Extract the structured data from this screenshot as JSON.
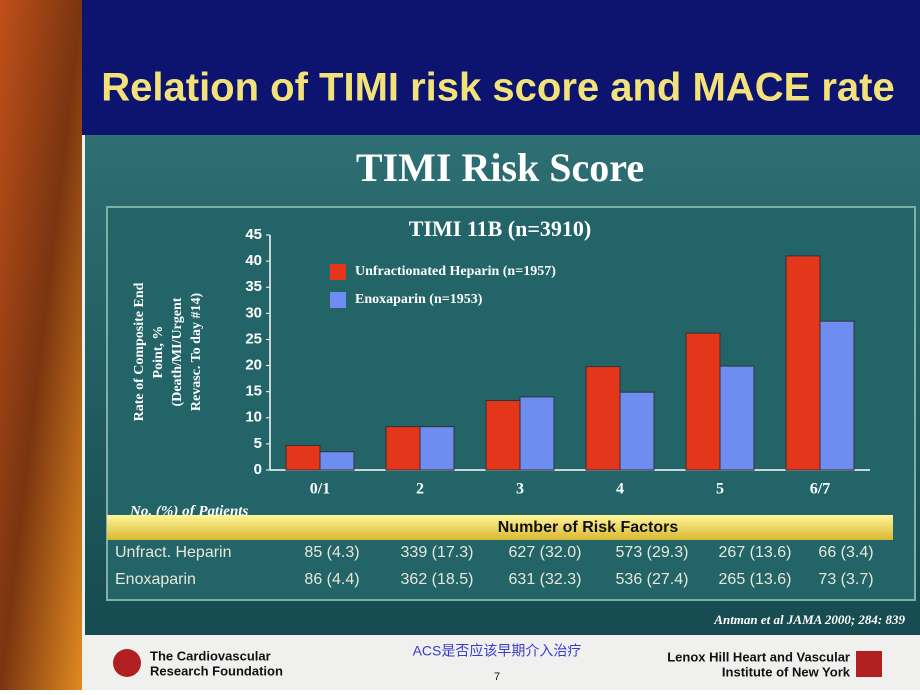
{
  "slide": {
    "title": "Relation of TIMI risk score and MACE rate",
    "citation": "Antman et al JAMA 2000; 284: 839",
    "footer_left": [
      "The Cardiovascular",
      "Research Foundation"
    ],
    "footer_center": "ACS是否应该早期介入治疗",
    "page_number": "7",
    "footer_right": [
      "Lenox Hill Heart and Vascular",
      "Institute of New York"
    ]
  },
  "chart_data": {
    "type": "bar",
    "title": "TIMI Risk Score",
    "subtitle": "TIMI 11B (n=3910)",
    "y_label": [
      "Rate of Composite End",
      "Point, %",
      "(Death/MI/Urgent",
      "Revasc. To day #14)"
    ],
    "categories": [
      "0/1",
      "2",
      "3",
      "4",
      "5",
      "6/7"
    ],
    "series": [
      {
        "name": "Unfractionated Heparin (n=1957)",
        "color": "#e3361a",
        "values": [
          4.7,
          8.3,
          13.3,
          19.8,
          26.2,
          41
        ]
      },
      {
        "name": "Enoxaparin (n=1953)",
        "color": "#6d8ef0",
        "values": [
          3.5,
          8.3,
          14,
          14.9,
          19.9,
          28.5
        ]
      }
    ],
    "ylim": [
      0,
      45
    ],
    "yticks": [
      0,
      5,
      10,
      15,
      20,
      25,
      30,
      35,
      40,
      45
    ],
    "grid": false
  },
  "table": {
    "caption": "No. (%) of Patients",
    "header": "Number of Risk Factors",
    "rows": [
      [
        "Unfract. Heparin",
        "85 (4.3)",
        "339 (17.3)",
        "627 (32.0)",
        "573 (29.3)",
        "267 (13.6)",
        "66 (3.4)"
      ],
      [
        "Enoxaparin",
        "86 (4.4)",
        "362 (18.5)",
        "631 (32.3)",
        "536 (27.4)",
        "265 (13.6)",
        "73 (3.7)"
      ]
    ]
  }
}
